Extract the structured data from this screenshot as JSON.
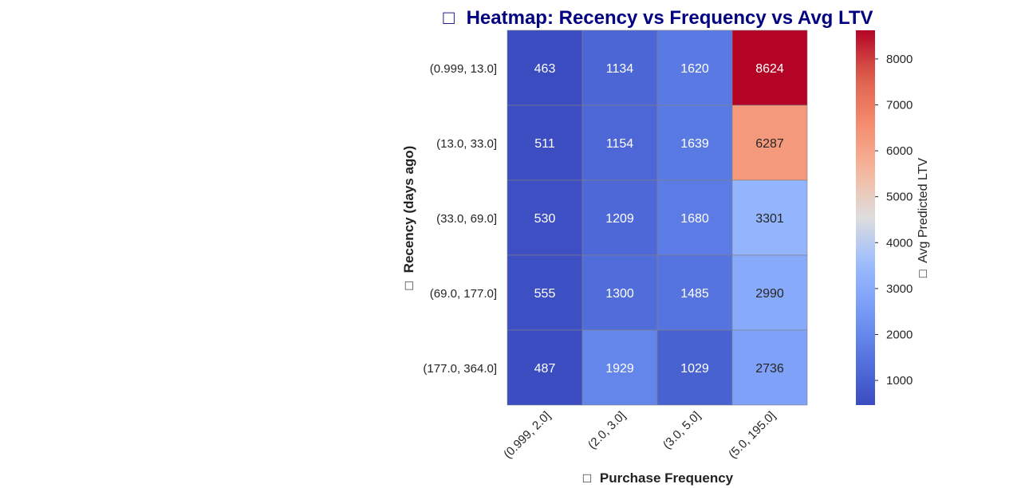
{
  "chart_data": {
    "type": "heatmap",
    "title": "Heatmap: Recency vs Frequency vs Avg LTV",
    "title_icon": "□",
    "xlabel": "Purchase Frequency",
    "ylabel": "Recency (days ago)",
    "label_icon": "□",
    "colorbar_label": "Avg Predicted LTV",
    "colormap": "coolwarm",
    "x_categories": [
      "(0.999, 2.0]",
      "(2.0, 3.0]",
      "(3.0, 5.0]",
      "(5.0, 195.0]"
    ],
    "y_categories": [
      "(0.999, 13.0]",
      "(13.0, 33.0]",
      "(33.0, 69.0]",
      "(69.0, 177.0]",
      "(177.0, 364.0]"
    ],
    "values": [
      [
        463,
        1134,
        1620,
        8624
      ],
      [
        511,
        1154,
        1639,
        6287
      ],
      [
        530,
        1209,
        1680,
        3301
      ],
      [
        555,
        1300,
        1485,
        2990
      ],
      [
        487,
        1929,
        1029,
        2736
      ]
    ],
    "vmin": 463,
    "vmax": 8624,
    "colorbar_ticks": [
      1000,
      2000,
      3000,
      4000,
      5000,
      6000,
      7000,
      8000
    ],
    "colors": {
      "title": "#000080",
      "cell_border": "#808080"
    }
  }
}
